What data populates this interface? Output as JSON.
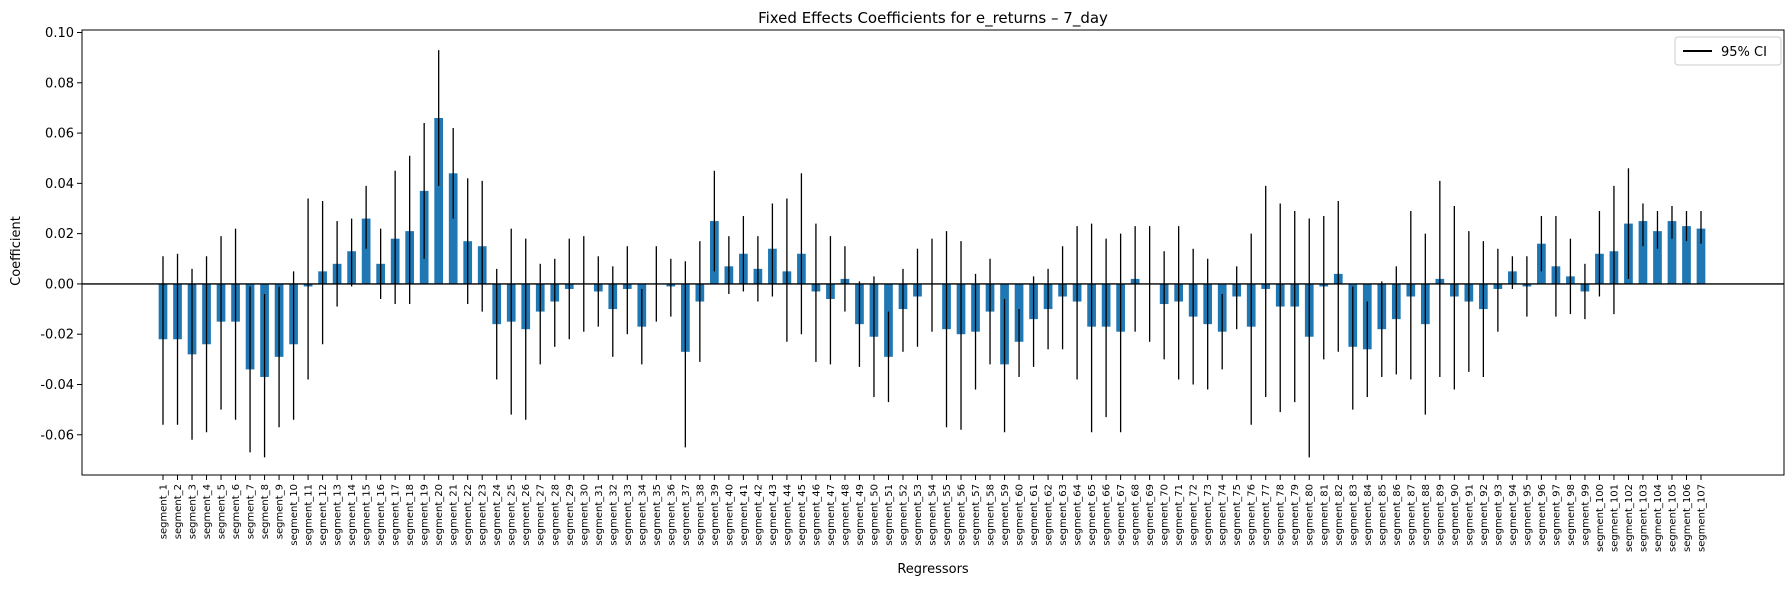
{
  "chart_data": {
    "type": "bar",
    "title": "Fixed Effects Coefficients for e_returns – 7_day",
    "xlabel": "Regressors",
    "ylabel": "Coefficient",
    "ylim": [
      -0.076,
      0.101
    ],
    "yticks": [
      -0.06,
      -0.04,
      -0.02,
      0.0,
      0.02,
      0.04,
      0.06,
      0.08,
      0.1
    ],
    "legend": {
      "label": "95% CI",
      "placement": "top-right"
    },
    "colors": {
      "bar": "#1f77b4",
      "errorbar": "#000000",
      "zero_line": "#000000"
    },
    "grid": false,
    "categories": [
      "segment_1",
      "segment_2",
      "segment_3",
      "segment_4",
      "segment_5",
      "segment_6",
      "segment_7",
      "segment_8",
      "segment_9",
      "segment_10",
      "segment_11",
      "segment_12",
      "segment_13",
      "segment_14",
      "segment_15",
      "segment_16",
      "segment_17",
      "segment_18",
      "segment_19",
      "segment_20",
      "segment_21",
      "segment_22",
      "segment_23",
      "segment_24",
      "segment_25",
      "segment_26",
      "segment_27",
      "segment_28",
      "segment_29",
      "segment_30",
      "segment_31",
      "segment_32",
      "segment_33",
      "segment_34",
      "segment_35",
      "segment_36",
      "segment_37",
      "segment_38",
      "segment_39",
      "segment_40",
      "segment_41",
      "segment_42",
      "segment_43",
      "segment_44",
      "segment_45",
      "segment_46",
      "segment_47",
      "segment_48",
      "segment_49",
      "segment_50",
      "segment_51",
      "segment_52",
      "segment_53",
      "segment_54",
      "segment_55",
      "segment_56",
      "segment_57",
      "segment_58",
      "segment_59",
      "segment_60",
      "segment_61",
      "segment_62",
      "segment_63",
      "segment_64",
      "segment_65",
      "segment_66",
      "segment_67",
      "segment_68",
      "segment_69",
      "segment_70",
      "segment_71",
      "segment_72",
      "segment_73",
      "segment_74",
      "segment_75",
      "segment_76",
      "segment_77",
      "segment_78",
      "segment_79",
      "segment_80",
      "segment_81",
      "segment_82",
      "segment_83",
      "segment_84",
      "segment_85",
      "segment_86",
      "segment_87",
      "segment_88",
      "segment_89",
      "segment_90",
      "segment_91",
      "segment_92",
      "segment_93",
      "segment_94",
      "segment_95",
      "segment_96",
      "segment_97",
      "segment_98",
      "segment_99",
      "segment_100",
      "segment_101",
      "segment_102",
      "segment_103",
      "segment_104",
      "segment_105",
      "segment_106",
      "segment_107"
    ],
    "values": [
      -0.022,
      -0.022,
      -0.028,
      -0.024,
      -0.015,
      -0.015,
      -0.034,
      -0.037,
      -0.029,
      -0.024,
      -0.001,
      0.005,
      0.008,
      0.013,
      0.026,
      0.008,
      0.018,
      0.021,
      0.037,
      0.066,
      0.044,
      0.017,
      0.015,
      -0.016,
      -0.015,
      -0.018,
      -0.011,
      -0.007,
      -0.002,
      -0.0,
      -0.003,
      -0.01,
      -0.002,
      -0.017,
      -0.0,
      -0.001,
      -0.027,
      -0.007,
      0.025,
      0.007,
      0.012,
      0.006,
      0.014,
      0.005,
      0.012,
      -0.003,
      -0.006,
      0.002,
      -0.016,
      -0.021,
      -0.029,
      -0.01,
      -0.005,
      -0.0,
      -0.018,
      -0.02,
      -0.019,
      -0.011,
      -0.032,
      -0.023,
      -0.014,
      -0.01,
      -0.005,
      -0.007,
      -0.017,
      -0.017,
      -0.019,
      0.002,
      -0.0,
      -0.008,
      -0.007,
      -0.013,
      -0.016,
      -0.019,
      -0.005,
      -0.017,
      -0.002,
      -0.009,
      -0.009,
      -0.021,
      -0.001,
      0.004,
      -0.025,
      -0.026,
      -0.018,
      -0.014,
      -0.005,
      -0.016,
      0.002,
      -0.005,
      -0.007,
      -0.01,
      -0.002,
      0.005,
      -0.001,
      0.016,
      0.007,
      0.003,
      -0.003,
      0.012,
      0.013,
      0.024,
      0.025,
      0.021,
      0.025,
      0.023,
      0.022
    ],
    "ci_low": [
      -0.056,
      -0.056,
      -0.062,
      -0.059,
      -0.05,
      -0.054,
      -0.067,
      -0.069,
      -0.057,
      -0.054,
      -0.038,
      -0.024,
      -0.009,
      -0.001,
      0.014,
      -0.006,
      -0.008,
      -0.008,
      0.01,
      0.039,
      0.026,
      -0.008,
      -0.011,
      -0.038,
      -0.052,
      -0.054,
      -0.032,
      -0.025,
      -0.022,
      -0.019,
      -0.017,
      -0.029,
      -0.02,
      -0.032,
      -0.015,
      -0.013,
      -0.065,
      -0.031,
      0.005,
      -0.004,
      -0.003,
      -0.007,
      -0.005,
      -0.023,
      -0.02,
      -0.031,
      -0.032,
      -0.011,
      -0.033,
      -0.045,
      -0.047,
      -0.027,
      -0.025,
      -0.019,
      -0.057,
      -0.058,
      -0.042,
      -0.032,
      -0.059,
      -0.037,
      -0.033,
      -0.026,
      -0.026,
      -0.038,
      -0.059,
      -0.053,
      -0.059,
      -0.019,
      -0.023,
      -0.03,
      -0.038,
      -0.04,
      -0.042,
      -0.034,
      -0.018,
      -0.056,
      -0.045,
      -0.051,
      -0.047,
      -0.069,
      -0.03,
      -0.027,
      -0.05,
      -0.045,
      -0.037,
      -0.036,
      -0.038,
      -0.052,
      -0.037,
      -0.042,
      -0.035,
      -0.037,
      -0.019,
      -0.002,
      -0.013,
      0.005,
      -0.013,
      -0.012,
      -0.014,
      -0.005,
      -0.012,
      0.002,
      0.015,
      0.014,
      0.018,
      0.017,
      0.016
    ],
    "ci_high": [
      0.011,
      0.012,
      0.006,
      0.011,
      0.019,
      0.022,
      -0.001,
      -0.004,
      -0.001,
      0.005,
      0.034,
      0.033,
      0.025,
      0.026,
      0.039,
      0.022,
      0.045,
      0.051,
      0.064,
      0.093,
      0.062,
      0.042,
      0.041,
      0.006,
      0.022,
      0.018,
      0.008,
      0.01,
      0.018,
      0.019,
      0.011,
      0.007,
      0.015,
      -0.002,
      0.015,
      0.01,
      0.009,
      0.017,
      0.045,
      0.019,
      0.027,
      0.019,
      0.032,
      0.034,
      0.044,
      0.024,
      0.019,
      0.015,
      0.001,
      0.003,
      -0.011,
      0.006,
      0.014,
      0.018,
      0.021,
      0.017,
      0.004,
      0.01,
      -0.006,
      -0.01,
      0.003,
      0.006,
      0.015,
      0.023,
      0.024,
      0.018,
      0.02,
      0.023,
      0.023,
      0.013,
      0.023,
      0.014,
      0.01,
      -0.004,
      0.007,
      0.02,
      0.039,
      0.032,
      0.029,
      0.026,
      0.027,
      0.033,
      -0.001,
      -0.007,
      0.001,
      0.007,
      0.029,
      0.02,
      0.041,
      0.031,
      0.021,
      0.017,
      0.014,
      0.011,
      0.011,
      0.027,
      0.027,
      0.018,
      0.008,
      0.029,
      0.039,
      0.046,
      0.032,
      0.029,
      0.031,
      0.029,
      0.029
    ]
  }
}
